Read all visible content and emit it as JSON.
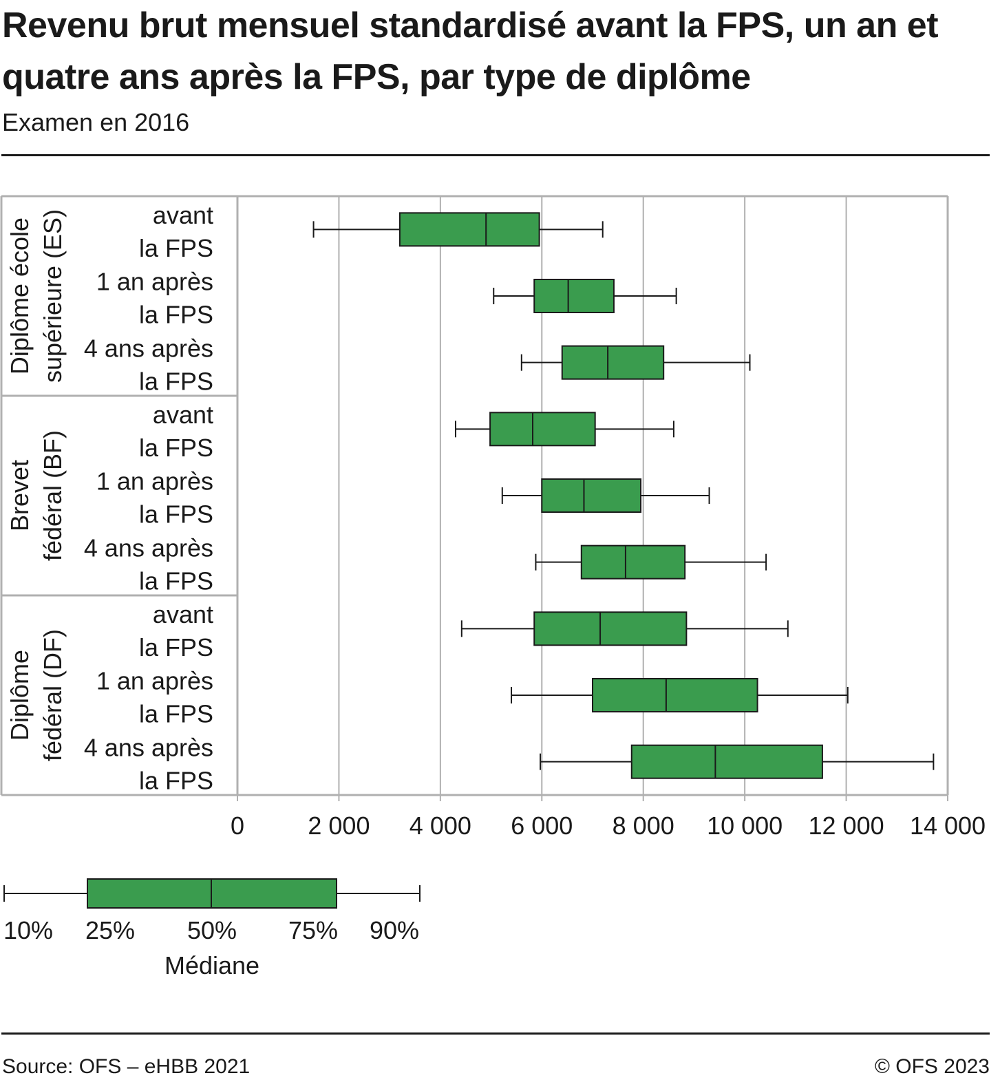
{
  "title": "Revenu brut mensuel standardisé avant la FPS, un an et quatre ans après la FPS, par type de diplôme",
  "subtitle": "Examen en 2016",
  "source": "Source: OFS – eHBB 2021",
  "copyright": "© OFS 2023",
  "colors": {
    "box_fill": "#3a9c4e",
    "stroke": "#1a1a1a",
    "grid": "#b0b0b0"
  },
  "chart_data": {
    "type": "boxplot",
    "orientation": "horizontal",
    "xlim": [
      0,
      14000
    ],
    "xticks": [
      0,
      2000,
      4000,
      6000,
      8000,
      10000,
      12000,
      14000
    ],
    "xtick_labels": [
      "0",
      "2 000",
      "4 000",
      "6 000",
      "8 000",
      "10 000",
      "12 000",
      "14 000"
    ],
    "grid": true,
    "groups": [
      {
        "label_lines": [
          "Diplôme école",
          "supérieure (ES)"
        ],
        "rows": [
          {
            "label_lines": [
              "avant",
              "la FPS"
            ],
            "p10": 1500,
            "p25": 3200,
            "median": 4900,
            "p75": 5950,
            "p90": 7200
          },
          {
            "label_lines": [
              "1 an après",
              "la FPS"
            ],
            "p10": 5050,
            "p25": 5850,
            "median": 6520,
            "p75": 7420,
            "p90": 8650
          },
          {
            "label_lines": [
              "4 ans après",
              "la FPS"
            ],
            "p10": 5600,
            "p25": 6400,
            "median": 7300,
            "p75": 8400,
            "p90": 10100
          }
        ]
      },
      {
        "label_lines": [
          "Brevet",
          "fédéral (BF)"
        ],
        "rows": [
          {
            "label_lines": [
              "avant",
              "la FPS"
            ],
            "p10": 4300,
            "p25": 4980,
            "median": 5820,
            "p75": 7050,
            "p90": 8600
          },
          {
            "label_lines": [
              "1 an après",
              "la FPS"
            ],
            "p10": 5220,
            "p25": 6000,
            "median": 6830,
            "p75": 7950,
            "p90": 9300
          },
          {
            "label_lines": [
              "4 ans après",
              "la FPS"
            ],
            "p10": 5880,
            "p25": 6780,
            "median": 7650,
            "p75": 8820,
            "p90": 10420
          }
        ]
      },
      {
        "label_lines": [
          "Diplôme",
          "fédéral (DF)"
        ],
        "rows": [
          {
            "label_lines": [
              "avant",
              "la FPS"
            ],
            "p10": 4420,
            "p25": 5850,
            "median": 7150,
            "p75": 8850,
            "p90": 10850
          },
          {
            "label_lines": [
              "1 an après",
              "la FPS"
            ],
            "p10": 5400,
            "p25": 7000,
            "median": 8450,
            "p75": 10250,
            "p90": 12030
          },
          {
            "label_lines": [
              "4 ans après",
              "la FPS"
            ],
            "p10": 5970,
            "p25": 7770,
            "median": 9420,
            "p75": 11530,
            "p90": 13720
          }
        ]
      }
    ],
    "legend": {
      "labels": [
        "10%",
        "25%",
        "50%",
        "75%",
        "90%"
      ],
      "median_label": "Médiane"
    }
  }
}
